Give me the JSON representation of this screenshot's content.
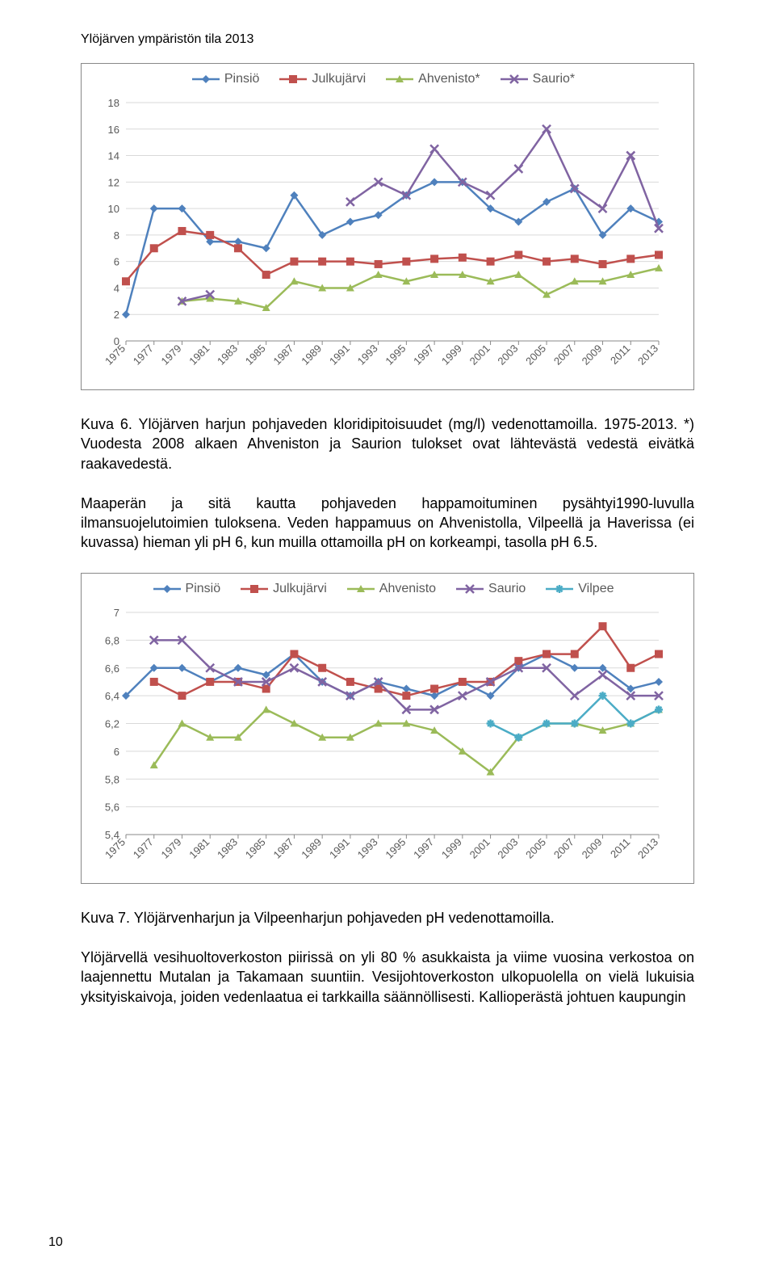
{
  "header": "Ylöjärven ympäristön tila 2013",
  "page_number": "10",
  "chart1": {
    "type": "line",
    "legend": [
      {
        "label": "Pinsiö",
        "color": "#4f81bd",
        "marker": "diamond"
      },
      {
        "label": "Julkujärvi",
        "color": "#c0504d",
        "marker": "square"
      },
      {
        "label": "Ahvenisto*",
        "color": "#9bbb59",
        "marker": "triangle"
      },
      {
        "label": "Saurio*",
        "color": "#8064a2",
        "marker": "x"
      }
    ],
    "x": [
      "1975",
      "1977",
      "1979",
      "1981",
      "1983",
      "1985",
      "1987",
      "1989",
      "1991",
      "1993",
      "1995",
      "1997",
      "1999",
      "2001",
      "2003",
      "2005",
      "2007",
      "2009",
      "2011",
      "2013"
    ],
    "ylim": [
      0,
      18
    ],
    "ytick_step": 2,
    "series": {
      "Pinsiö": [
        2.0,
        10.0,
        10.0,
        7.5,
        7.5,
        7.0,
        11.0,
        8.0,
        9.0,
        9.5,
        11.0,
        12.0,
        12.0,
        10.0,
        9.0,
        10.5,
        11.5,
        8.0,
        10.0,
        9.0
      ],
      "Julkujärvi": [
        4.5,
        7.0,
        8.3,
        8.0,
        7.0,
        5.0,
        6.0,
        6.0,
        6.0,
        5.8,
        6.0,
        6.2,
        6.3,
        6.0,
        6.5,
        6.0,
        6.2,
        5.8,
        6.2,
        6.5
      ],
      "Ahvenisto*": [
        null,
        null,
        3.0,
        3.2,
        3.0,
        2.5,
        4.5,
        4.0,
        4.0,
        5.0,
        4.5,
        5.0,
        5.0,
        4.5,
        5.0,
        3.5,
        4.5,
        4.5,
        5.0,
        5.5
      ],
      "Saurio*": [
        null,
        null,
        3.0,
        3.5,
        null,
        null,
        null,
        null,
        10.5,
        12.0,
        11.0,
        14.5,
        12.0,
        11.0,
        13.0,
        16.0,
        11.5,
        10.0,
        14.0,
        8.5
      ]
    },
    "grid_color": "#d9d9d9",
    "axis_color": "#898989",
    "bg": "#ffffff",
    "label_fontsize": 13,
    "line_width": 2,
    "marker_size": 5
  },
  "caption1": "Kuva 6. Ylöjärven harjun  pohjaveden kloridipitoisuudet (mg/l) vedenottamoilla. 1975-2013. *) Vuodesta 2008 alkaen Ahveniston ja Saurion tulokset ovat lähtevästä vedestä eivätkä raakavedestä.",
  "para1": "Maaperän ja sitä kautta pohjaveden happamoituminen pysähtyi1990-luvulla ilmansuojelutoimien tuloksena. Veden happamuus on Ahvenistolla, Vilpeellä ja Haverissa (ei kuvassa) hieman yli pH 6, kun muilla ottamoilla pH on korkeampi, tasolla pH 6.5.",
  "chart2": {
    "type": "line",
    "legend": [
      {
        "label": "Pinsiö",
        "color": "#4f81bd",
        "marker": "diamond"
      },
      {
        "label": "Julkujärvi",
        "color": "#c0504d",
        "marker": "square"
      },
      {
        "label": "Ahvenisto",
        "color": "#9bbb59",
        "marker": "triangle"
      },
      {
        "label": "Saurio",
        "color": "#8064a2",
        "marker": "x"
      },
      {
        "label": "Vilpee",
        "color": "#4bacc6",
        "marker": "star"
      }
    ],
    "x": [
      "1975",
      "1977",
      "1979",
      "1981",
      "1983",
      "1985",
      "1987",
      "1989",
      "1991",
      "1993",
      "1995",
      "1997",
      "1999",
      "2001",
      "2003",
      "2005",
      "2007",
      "2009",
      "2011",
      "2013"
    ],
    "ylim": [
      5.4,
      7.0
    ],
    "yticks": [
      5.4,
      5.6,
      5.8,
      6.0,
      6.2,
      6.4,
      6.6,
      6.8,
      7.0
    ],
    "series": {
      "Pinsiö": [
        6.4,
        6.6,
        6.6,
        6.5,
        6.6,
        6.55,
        6.7,
        6.5,
        6.4,
        6.5,
        6.45,
        6.4,
        6.5,
        6.4,
        6.6,
        6.7,
        6.6,
        6.6,
        6.45,
        6.5
      ],
      "Julkujärvi": [
        null,
        6.5,
        6.4,
        6.5,
        6.5,
        6.45,
        6.7,
        6.6,
        6.5,
        6.45,
        6.4,
        6.45,
        6.5,
        6.5,
        6.65,
        6.7,
        6.7,
        6.9,
        6.6,
        6.7
      ],
      "Ahvenisto": [
        null,
        5.9,
        6.2,
        6.1,
        6.1,
        6.3,
        6.2,
        6.1,
        6.1,
        6.2,
        6.2,
        6.15,
        6.0,
        5.85,
        6.1,
        6.2,
        6.2,
        6.15,
        6.2,
        6.3
      ],
      "Saurio": [
        null,
        6.8,
        6.8,
        6.6,
        6.5,
        6.5,
        6.6,
        6.5,
        6.4,
        6.5,
        6.3,
        6.3,
        6.4,
        6.5,
        6.6,
        6.6,
        6.4,
        6.55,
        6.4,
        6.4
      ],
      "Vilpee": [
        null,
        null,
        null,
        null,
        null,
        null,
        null,
        null,
        null,
        null,
        null,
        null,
        null,
        6.2,
        6.1,
        6.2,
        6.2,
        6.4,
        6.2,
        6.3
      ]
    },
    "grid_color": "#d9d9d9",
    "axis_color": "#898989",
    "bg": "#ffffff",
    "label_fontsize": 13,
    "line_width": 2,
    "marker_size": 5
  },
  "caption2": "Kuva 7. Ylöjärvenharjun ja Vilpeenharjun pohjaveden pH vedenottamoilla.",
  "para2": "Ylöjärvellä vesihuoltoverkoston piirissä on yli 80 % asukkaista ja viime vuosina verkostoa on laajennettu Mutalan ja Takamaan suuntiin. Vesijohtoverkoston ulkopuolella on vielä lukuisia yksityiskaivoja, joiden vedenlaatua ei tarkkailla säännöllisesti. Kallioperästä johtuen kaupungin"
}
